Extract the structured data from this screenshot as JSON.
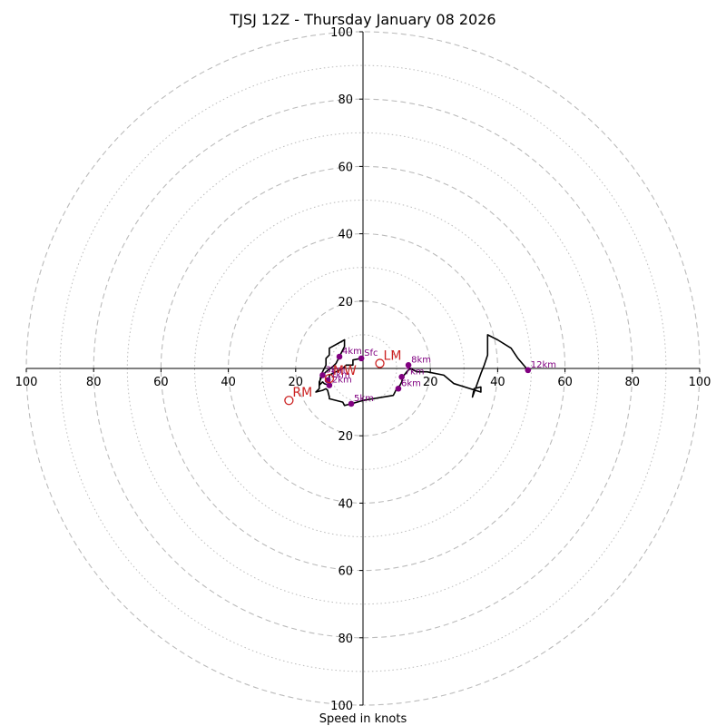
{
  "chart_data": {
    "type": "hodograph",
    "title": "TJSJ 12Z - Thursday January 08 2026",
    "xlabel": "Speed in knots",
    "range": [
      -100,
      100
    ],
    "major_rings": [
      20,
      40,
      60,
      80,
      100
    ],
    "minor_rings": [
      10,
      30,
      50,
      70,
      90
    ],
    "x_ticks": [
      {
        "value": -100,
        "label": "100"
      },
      {
        "value": -80,
        "label": "80"
      },
      {
        "value": -60,
        "label": "60"
      },
      {
        "value": -40,
        "label": "40"
      },
      {
        "value": -20,
        "label": "20"
      },
      {
        "value": 20,
        "label": "20"
      },
      {
        "value": 40,
        "label": "40"
      },
      {
        "value": 60,
        "label": "60"
      },
      {
        "value": 80,
        "label": "80"
      },
      {
        "value": 100,
        "label": "100"
      }
    ],
    "y_ticks": [
      {
        "value": 100,
        "label": "100"
      },
      {
        "value": 80,
        "label": "80"
      },
      {
        "value": 60,
        "label": "60"
      },
      {
        "value": 40,
        "label": "40"
      },
      {
        "value": 20,
        "label": "20"
      },
      {
        "value": -20,
        "label": "20"
      },
      {
        "value": -40,
        "label": "40"
      },
      {
        "value": -60,
        "label": "60"
      },
      {
        "value": -80,
        "label": "80"
      },
      {
        "value": -100,
        "label": "100"
      }
    ],
    "trace_color": "#000000",
    "trace": [
      [
        -0.5,
        3
      ],
      [
        -3,
        2.5
      ],
      [
        -3,
        1
      ],
      [
        -5,
        1
      ],
      [
        -6,
        0
      ],
      [
        -8,
        -1
      ],
      [
        -10,
        -2
      ],
      [
        -10,
        -5
      ],
      [
        -11.5,
        -4.5
      ],
      [
        -12,
        -4
      ],
      [
        -13,
        -5
      ],
      [
        -12.5,
        -2
      ],
      [
        -11,
        1
      ],
      [
        -11,
        3
      ],
      [
        -10,
        4
      ],
      [
        -10,
        6
      ],
      [
        -5.5,
        8.5
      ],
      [
        -5.5,
        6.5
      ],
      [
        -7,
        3.5
      ],
      [
        -8,
        1.5
      ],
      [
        -9,
        0.5
      ],
      [
        -11,
        -1
      ],
      [
        -12,
        -2
      ],
      [
        -13,
        -4
      ],
      [
        -13,
        -6
      ],
      [
        -14,
        -7
      ],
      [
        -12,
        -6.5
      ],
      [
        -11,
        -6
      ],
      [
        -10.5,
        -6.5
      ],
      [
        -10,
        -8.5
      ],
      [
        -10,
        -9
      ],
      [
        -6,
        -10
      ],
      [
        -5.5,
        -11
      ],
      [
        -3.5,
        -10.5
      ],
      [
        0,
        -9.5
      ],
      [
        9,
        -8
      ],
      [
        10,
        -6
      ],
      [
        11,
        -5
      ],
      [
        11.5,
        -4
      ],
      [
        11.8,
        -2.5
      ],
      [
        13,
        -1
      ],
      [
        14,
        0
      ],
      [
        16,
        -1
      ],
      [
        19,
        -1
      ],
      [
        24,
        -2
      ],
      [
        27,
        -4.5
      ],
      [
        35,
        -7
      ],
      [
        35,
        -5.5
      ],
      [
        33,
        -6
      ],
      [
        32.5,
        -8.5
      ],
      [
        35,
        -1.5
      ],
      [
        36,
        1
      ],
      [
        37,
        4
      ],
      [
        37,
        10
      ],
      [
        40,
        8.5
      ],
      [
        44,
        6
      ],
      [
        46,
        3
      ],
      [
        49,
        -0.5
      ]
    ],
    "height_markers": [
      {
        "label": "Sfc",
        "u": -0.5,
        "v": 3
      },
      {
        "label": "1km",
        "u": -10.5,
        "v": -3.5
      },
      {
        "label": "2km",
        "u": -10,
        "v": -5
      },
      {
        "label": "3km",
        "u": -12,
        "v": -2
      },
      {
        "label": "4km",
        "u": -7,
        "v": 3.5
      },
      {
        "label": "5km",
        "u": -3.5,
        "v": -10.5
      },
      {
        "label": "6km",
        "u": 10.5,
        "v": -6
      },
      {
        "label": "7km",
        "u": 11.5,
        "v": -2.5
      },
      {
        "label": "8km",
        "u": 13.5,
        "v": 1
      },
      {
        "label": "12km",
        "u": 49,
        "v": -0.5
      }
    ],
    "marker_color": "#800080",
    "storm_motion": [
      {
        "label": "LM",
        "u": 5,
        "v": 1.5
      },
      {
        "label": "MW",
        "u": -10,
        "v": -3
      },
      {
        "label": "RM",
        "u": -22,
        "v": -9.5
      }
    ],
    "storm_motion_color": "#cc2222",
    "ring_color": "#bbbbbb"
  }
}
